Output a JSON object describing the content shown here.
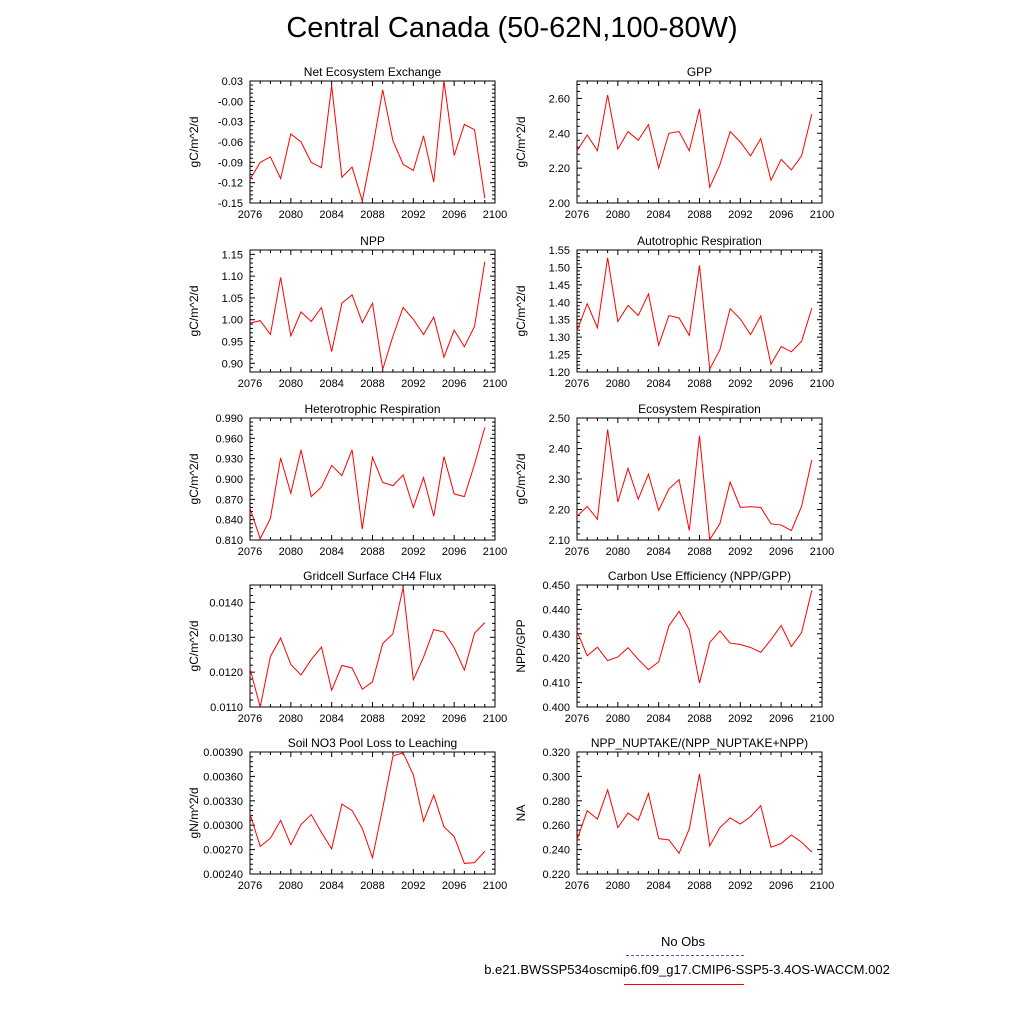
{
  "title": "Central Canada (50-62N,100-80W)",
  "legend": {
    "obs_label": "No Obs",
    "case_label": "b.e21.BWSSP534oscmip6.f09_g17.CMIP6-SSP5-3.4OS-WACCM.002",
    "obs_color": "#5555cc",
    "case_color": "#ff0000"
  },
  "chart_data": [
    {
      "type": "line",
      "title": "Net Ecosystem Exchange",
      "ylabel": "gC/m^2/d",
      "xlim": [
        2076,
        2100
      ],
      "xticks": [
        "2076",
        "2080",
        "2084",
        "2088",
        "2092",
        "2096",
        "2100"
      ],
      "ylim": [
        -0.15,
        0.03
      ],
      "yticks": [
        "-0.15",
        "-0.12",
        "-0.09",
        "-0.06",
        "-0.03",
        "-0.00",
        "0.03"
      ],
      "x": [
        2076,
        2077,
        2078,
        2079,
        2080,
        2081,
        2082,
        2083,
        2084,
        2085,
        2086,
        2087,
        2088,
        2089,
        2090,
        2091,
        2092,
        2093,
        2094,
        2095,
        2096,
        2097,
        2098,
        2099
      ],
      "values": [
        -0.115,
        -0.09,
        -0.082,
        -0.114,
        -0.048,
        -0.06,
        -0.09,
        -0.098,
        0.023,
        -0.112,
        -0.097,
        -0.147,
        -0.07,
        0.017,
        -0.058,
        -0.093,
        -0.102,
        -0.051,
        -0.119,
        0.03,
        -0.08,
        -0.034,
        -0.042,
        -0.143
      ],
      "color": "#ff0000"
    },
    {
      "type": "line",
      "title": "GPP",
      "ylabel": "gC/m^2/d",
      "xlim": [
        2076,
        2100
      ],
      "xticks": [
        "2076",
        "2080",
        "2084",
        "2088",
        "2092",
        "2096",
        "2100"
      ],
      "ylim": [
        2.0,
        2.7
      ],
      "yticks": [
        "2.00",
        "2.20",
        "2.40",
        "2.60"
      ],
      "x": [
        2076,
        2077,
        2078,
        2079,
        2080,
        2081,
        2082,
        2083,
        2084,
        2085,
        2086,
        2087,
        2088,
        2089,
        2090,
        2091,
        2092,
        2093,
        2094,
        2095,
        2096,
        2097,
        2098,
        2099
      ],
      "values": [
        2.3,
        2.39,
        2.3,
        2.62,
        2.31,
        2.41,
        2.36,
        2.45,
        2.2,
        2.4,
        2.41,
        2.3,
        2.54,
        2.09,
        2.22,
        2.41,
        2.35,
        2.27,
        2.37,
        2.13,
        2.25,
        2.19,
        2.27,
        2.51
      ],
      "color": "#ff0000"
    },
    {
      "type": "line",
      "title": "NPP",
      "ylabel": "gC/m^2/d",
      "xlim": [
        2076,
        2100
      ],
      "xticks": [
        "2076",
        "2080",
        "2084",
        "2088",
        "2092",
        "2096",
        "2100"
      ],
      "ylim": [
        0.88,
        1.16
      ],
      "yticks": [
        "0.90",
        "0.95",
        "1.00",
        "1.05",
        "1.10",
        "1.15"
      ],
      "x": [
        2076,
        2077,
        2078,
        2079,
        2080,
        2081,
        2082,
        2083,
        2084,
        2085,
        2086,
        2087,
        2088,
        2089,
        2090,
        2091,
        2092,
        2093,
        2094,
        2095,
        2096,
        2097,
        2098,
        2099
      ],
      "values": [
        0.992,
        0.998,
        0.966,
        1.097,
        0.963,
        1.018,
        0.996,
        1.028,
        0.927,
        1.038,
        1.057,
        0.993,
        1.038,
        0.886,
        0.962,
        1.028,
        1.001,
        0.966,
        1.006,
        0.914,
        0.976,
        0.938,
        0.985,
        1.133
      ],
      "color": "#ff0000"
    },
    {
      "type": "line",
      "title": "Autotrophic Respiration",
      "ylabel": "gC/m^2/d",
      "xlim": [
        2076,
        2100
      ],
      "xticks": [
        "2076",
        "2080",
        "2084",
        "2088",
        "2092",
        "2096",
        "2100"
      ],
      "ylim": [
        1.2,
        1.55
      ],
      "yticks": [
        "1.20",
        "1.25",
        "1.30",
        "1.35",
        "1.40",
        "1.45",
        "1.50",
        "1.55"
      ],
      "x": [
        2076,
        2077,
        2078,
        2079,
        2080,
        2081,
        2082,
        2083,
        2084,
        2085,
        2086,
        2087,
        2088,
        2089,
        2090,
        2091,
        2092,
        2093,
        2094,
        2095,
        2096,
        2097,
        2098,
        2099
      ],
      "values": [
        1.318,
        1.396,
        1.327,
        1.528,
        1.345,
        1.391,
        1.362,
        1.424,
        1.277,
        1.362,
        1.355,
        1.305,
        1.506,
        1.208,
        1.264,
        1.382,
        1.352,
        1.307,
        1.361,
        1.222,
        1.273,
        1.258,
        1.288,
        1.383
      ],
      "color": "#ff0000"
    },
    {
      "type": "line",
      "title": "Heterotrophic Respiration",
      "ylabel": "gC/m^2/d",
      "xlim": [
        2076,
        2100
      ],
      "xticks": [
        "2076",
        "2080",
        "2084",
        "2088",
        "2092",
        "2096",
        "2100"
      ],
      "ylim": [
        0.81,
        0.99
      ],
      "yticks": [
        "0.810",
        "0.840",
        "0.870",
        "0.900",
        "0.930",
        "0.960",
        "0.990"
      ],
      "x": [
        2076,
        2077,
        2078,
        2079,
        2080,
        2081,
        2082,
        2083,
        2084,
        2085,
        2086,
        2087,
        2088,
        2089,
        2090,
        2091,
        2092,
        2093,
        2094,
        2095,
        2096,
        2097,
        2098,
        2099
      ],
      "values": [
        0.857,
        0.812,
        0.842,
        0.931,
        0.879,
        0.943,
        0.874,
        0.888,
        0.92,
        0.905,
        0.943,
        0.826,
        0.932,
        0.895,
        0.89,
        0.906,
        0.858,
        0.902,
        0.845,
        0.933,
        0.878,
        0.874,
        0.922,
        0.976
      ],
      "color": "#ff0000"
    },
    {
      "type": "line",
      "title": "Ecosystem Respiration",
      "ylabel": "gC/m^2/d",
      "xlim": [
        2076,
        2100
      ],
      "xticks": [
        "2076",
        "2080",
        "2084",
        "2088",
        "2092",
        "2096",
        "2100"
      ],
      "ylim": [
        2.1,
        2.5
      ],
      "yticks": [
        "2.10",
        "2.20",
        "2.30",
        "2.40",
        "2.50"
      ],
      "x": [
        2076,
        2077,
        2078,
        2079,
        2080,
        2081,
        2082,
        2083,
        2084,
        2085,
        2086,
        2087,
        2088,
        2089,
        2090,
        2091,
        2092,
        2093,
        2094,
        2095,
        2096,
        2097,
        2098,
        2099
      ],
      "values": [
        2.178,
        2.21,
        2.168,
        2.462,
        2.225,
        2.335,
        2.234,
        2.316,
        2.197,
        2.267,
        2.298,
        2.131,
        2.442,
        2.101,
        2.154,
        2.29,
        2.207,
        2.209,
        2.207,
        2.153,
        2.149,
        2.131,
        2.21,
        2.362
      ],
      "color": "#ff0000"
    },
    {
      "type": "line",
      "title": "Gridcell Surface CH4 Flux",
      "ylabel": "gC/m^2/d",
      "xlim": [
        2076,
        2100
      ],
      "xticks": [
        "2076",
        "2080",
        "2084",
        "2088",
        "2092",
        "2096",
        "2100"
      ],
      "ylim": [
        0.011,
        0.0145
      ],
      "yticks": [
        "0.0110",
        "0.0120",
        "0.0130",
        "0.0140"
      ],
      "x": [
        2076,
        2077,
        2078,
        2079,
        2080,
        2081,
        2082,
        2083,
        2084,
        2085,
        2086,
        2087,
        2088,
        2089,
        2090,
        2091,
        2092,
        2093,
        2094,
        2095,
        2096,
        2097,
        2098,
        2099
      ],
      "values": [
        0.0121,
        0.011,
        0.01245,
        0.01298,
        0.01222,
        0.01192,
        0.01236,
        0.01272,
        0.01148,
        0.01219,
        0.01212,
        0.01151,
        0.01172,
        0.01282,
        0.0131,
        0.01443,
        0.01178,
        0.01243,
        0.01322,
        0.01315,
        0.0127,
        0.01206,
        0.01312,
        0.01342
      ],
      "color": "#ff0000"
    },
    {
      "type": "line",
      "title": "Carbon Use Efficiency (NPP/GPP)",
      "ylabel": "NPP/GPP",
      "xlim": [
        2076,
        2100
      ],
      "xticks": [
        "2076",
        "2080",
        "2084",
        "2088",
        "2092",
        "2096",
        "2100"
      ],
      "ylim": [
        0.4,
        0.45
      ],
      "yticks": [
        "0.400",
        "0.410",
        "0.420",
        "0.430",
        "0.440",
        "0.450"
      ],
      "x": [
        2076,
        2077,
        2078,
        2079,
        2080,
        2081,
        2082,
        2083,
        2084,
        2085,
        2086,
        2087,
        2088,
        2089,
        2090,
        2091,
        2092,
        2093,
        2094,
        2095,
        2096,
        2097,
        2098,
        2099
      ],
      "values": [
        0.431,
        0.421,
        0.4245,
        0.419,
        0.4205,
        0.4243,
        0.4195,
        0.4153,
        0.4185,
        0.4332,
        0.4392,
        0.4316,
        0.4098,
        0.4264,
        0.4312,
        0.4262,
        0.4256,
        0.4244,
        0.4224,
        0.4276,
        0.4334,
        0.4248,
        0.4305,
        0.4478
      ],
      "color": "#ff0000"
    },
    {
      "type": "line",
      "title": "Soil NO3 Pool Loss to Leaching",
      "ylabel": "gN/m^2/d",
      "xlim": [
        2076,
        2100
      ],
      "xticks": [
        "2076",
        "2080",
        "2084",
        "2088",
        "2092",
        "2096",
        "2100"
      ],
      "ylim": [
        0.0024,
        0.0039
      ],
      "yticks": [
        "0.00240",
        "0.00270",
        "0.00300",
        "0.00330",
        "0.00360",
        "0.00390"
      ],
      "x": [
        2076,
        2077,
        2078,
        2079,
        2080,
        2081,
        2082,
        2083,
        2084,
        2085,
        2086,
        2087,
        2088,
        2089,
        2090,
        2091,
        2092,
        2093,
        2094,
        2095,
        2096,
        2097,
        2098,
        2099
      ],
      "values": [
        0.00314,
        0.00274,
        0.00284,
        0.00306,
        0.00276,
        0.00301,
        0.00313,
        0.00291,
        0.00271,
        0.00326,
        0.00318,
        0.00296,
        0.0026,
        0.00321,
        0.00385,
        0.00389,
        0.00362,
        0.00305,
        0.00337,
        0.00298,
        0.00286,
        0.00253,
        0.00254,
        0.00268
      ],
      "color": "#ff0000"
    },
    {
      "type": "line",
      "title": "NPP_NUPTAKE/(NPP_NUPTAKE+NPP)",
      "ylabel": "NA",
      "xlim": [
        2076,
        2100
      ],
      "xticks": [
        "2076",
        "2080",
        "2084",
        "2088",
        "2092",
        "2096",
        "2100"
      ],
      "ylim": [
        0.22,
        0.32
      ],
      "yticks": [
        "0.220",
        "0.240",
        "0.260",
        "0.280",
        "0.300",
        "0.320"
      ],
      "x": [
        2076,
        2077,
        2078,
        2079,
        2080,
        2081,
        2082,
        2083,
        2084,
        2085,
        2086,
        2087,
        2088,
        2089,
        2090,
        2091,
        2092,
        2093,
        2094,
        2095,
        2096,
        2097,
        2098,
        2099
      ],
      "values": [
        0.248,
        0.272,
        0.265,
        0.289,
        0.258,
        0.27,
        0.264,
        0.286,
        0.249,
        0.248,
        0.237,
        0.257,
        0.302,
        0.243,
        0.258,
        0.266,
        0.261,
        0.267,
        0.276,
        0.242,
        0.245,
        0.252,
        0.246,
        0.238
      ],
      "color": "#ff0000"
    }
  ]
}
